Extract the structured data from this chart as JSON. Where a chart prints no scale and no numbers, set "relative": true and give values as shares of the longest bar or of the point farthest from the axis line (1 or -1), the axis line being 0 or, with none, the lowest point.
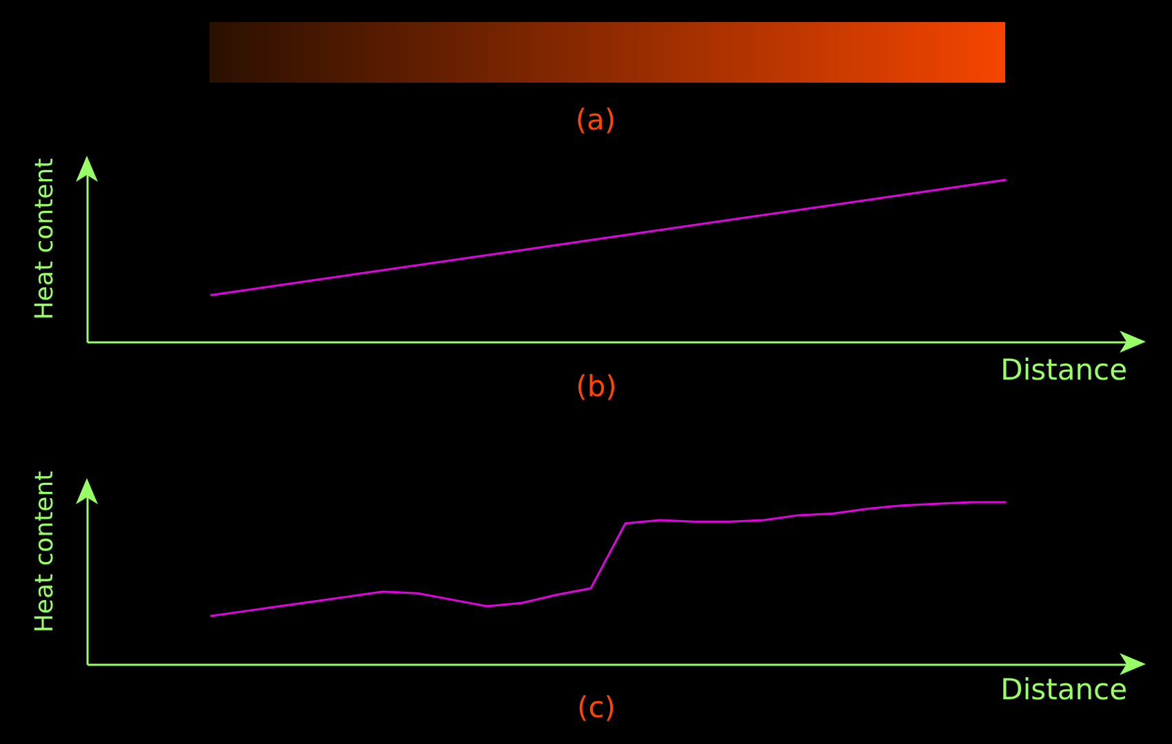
{
  "chart_data": [
    {
      "type": "other",
      "title": "(a)"
    },
    {
      "type": "line",
      "title": "(b)",
      "xlabel": "Distance",
      "ylabel": "Heat content",
      "relative": true,
      "tick_labels": false,
      "color": "#e600e6",
      "categories": [
        null,
        null
      ],
      "values": [
        0.29,
        1
      ]
    },
    {
      "type": "line",
      "title": "(c)",
      "xlabel": "Distance",
      "ylabel": "Heat content",
      "relative": true,
      "tick_labels": false,
      "color": "#e600e6",
      "categories": [
        null,
        null,
        null,
        null,
        null,
        null,
        null,
        null,
        null,
        null,
        null,
        null,
        null,
        null,
        null,
        null,
        null,
        null,
        null,
        null,
        null,
        null,
        null,
        null
      ],
      "values": [
        0.3,
        0.33,
        0.36,
        0.39,
        0.42,
        0.45,
        0.44,
        0.4,
        0.36,
        0.38,
        0.43,
        0.47,
        0.87,
        0.89,
        0.88,
        0.88,
        0.89,
        0.92,
        0.93,
        0.96,
        0.98,
        0.99,
        1,
        1
      ]
    }
  ]
}
